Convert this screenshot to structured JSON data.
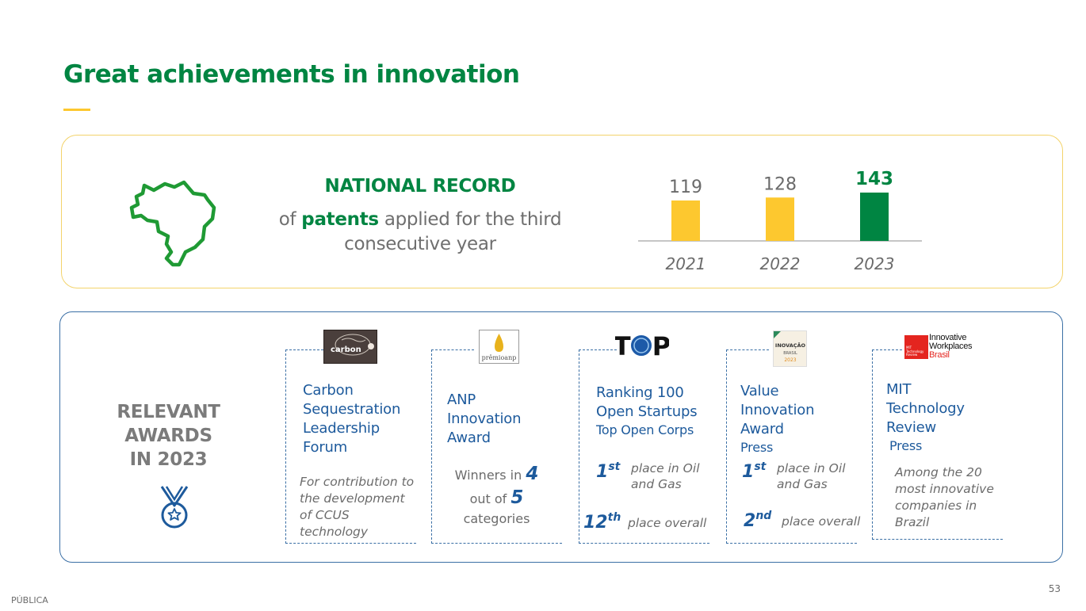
{
  "slide": {
    "title": "Great achievements in innovation",
    "classification": "PÚBLICA",
    "page_number": "53"
  },
  "record": {
    "heading": "NATIONAL RECORD",
    "text_prefix": "of ",
    "text_highlight": "patents",
    "text_suffix": " applied for the third consecutive year",
    "icon": "brazil-map-icon"
  },
  "chart_data": {
    "type": "bar",
    "categories": [
      "2021",
      "2022",
      "2023"
    ],
    "values": [
      119,
      128,
      143
    ],
    "value_labels": [
      "119",
      "128",
      "143"
    ],
    "colors": [
      "#fdc82f",
      "#fdc82f",
      "#008542"
    ],
    "highlight_index": 2
  },
  "awards": {
    "heading_lines": [
      "RELEVANT",
      "AWARDS",
      "IN 2023"
    ],
    "icon": "medal-icon",
    "items": [
      {
        "logo_text": "carbon",
        "name_lines": [
          "Carbon",
          "Sequestration",
          "Leadership",
          "Forum"
        ],
        "description": "For contribution to the development of CCUS technology"
      },
      {
        "logo_text": "prêmioanp",
        "name_lines": [
          "ANP",
          "Innovation",
          "Award"
        ],
        "winners_prefix": "Winners in",
        "winners_count": "4",
        "winners_mid": "out of",
        "winners_total": "5",
        "winners_suffix": "categories"
      },
      {
        "logo_text": "TOP",
        "name_lines": [
          "Ranking 100",
          "Open Startups"
        ],
        "subtitle": "Top Open Corps",
        "ranks": [
          {
            "num": "1",
            "suffix": "st",
            "text": "place in Oil and Gas"
          },
          {
            "num": "12",
            "suffix": "th",
            "text": "place overall"
          }
        ]
      },
      {
        "logo_text": "INOVAÇÃO BRASIL 2023",
        "name_lines": [
          "Value Innovation",
          "Award"
        ],
        "subtitle": "Press",
        "ranks": [
          {
            "num": "1",
            "suffix": "st",
            "text": "place in Oil and Gas"
          },
          {
            "num": "2",
            "suffix": "nd",
            "text": "place overall"
          }
        ]
      },
      {
        "logo_text_lines": [
          "Innovative",
          "Workplaces",
          "Brasil"
        ],
        "logo_badge_lines": [
          "MIT",
          "Technology",
          "Review"
        ],
        "name_lines": [
          "MIT",
          "Technology",
          "Review"
        ],
        "subtitle": "Press",
        "description": "Among the 20 most innovative companies in Brazil"
      }
    ]
  }
}
